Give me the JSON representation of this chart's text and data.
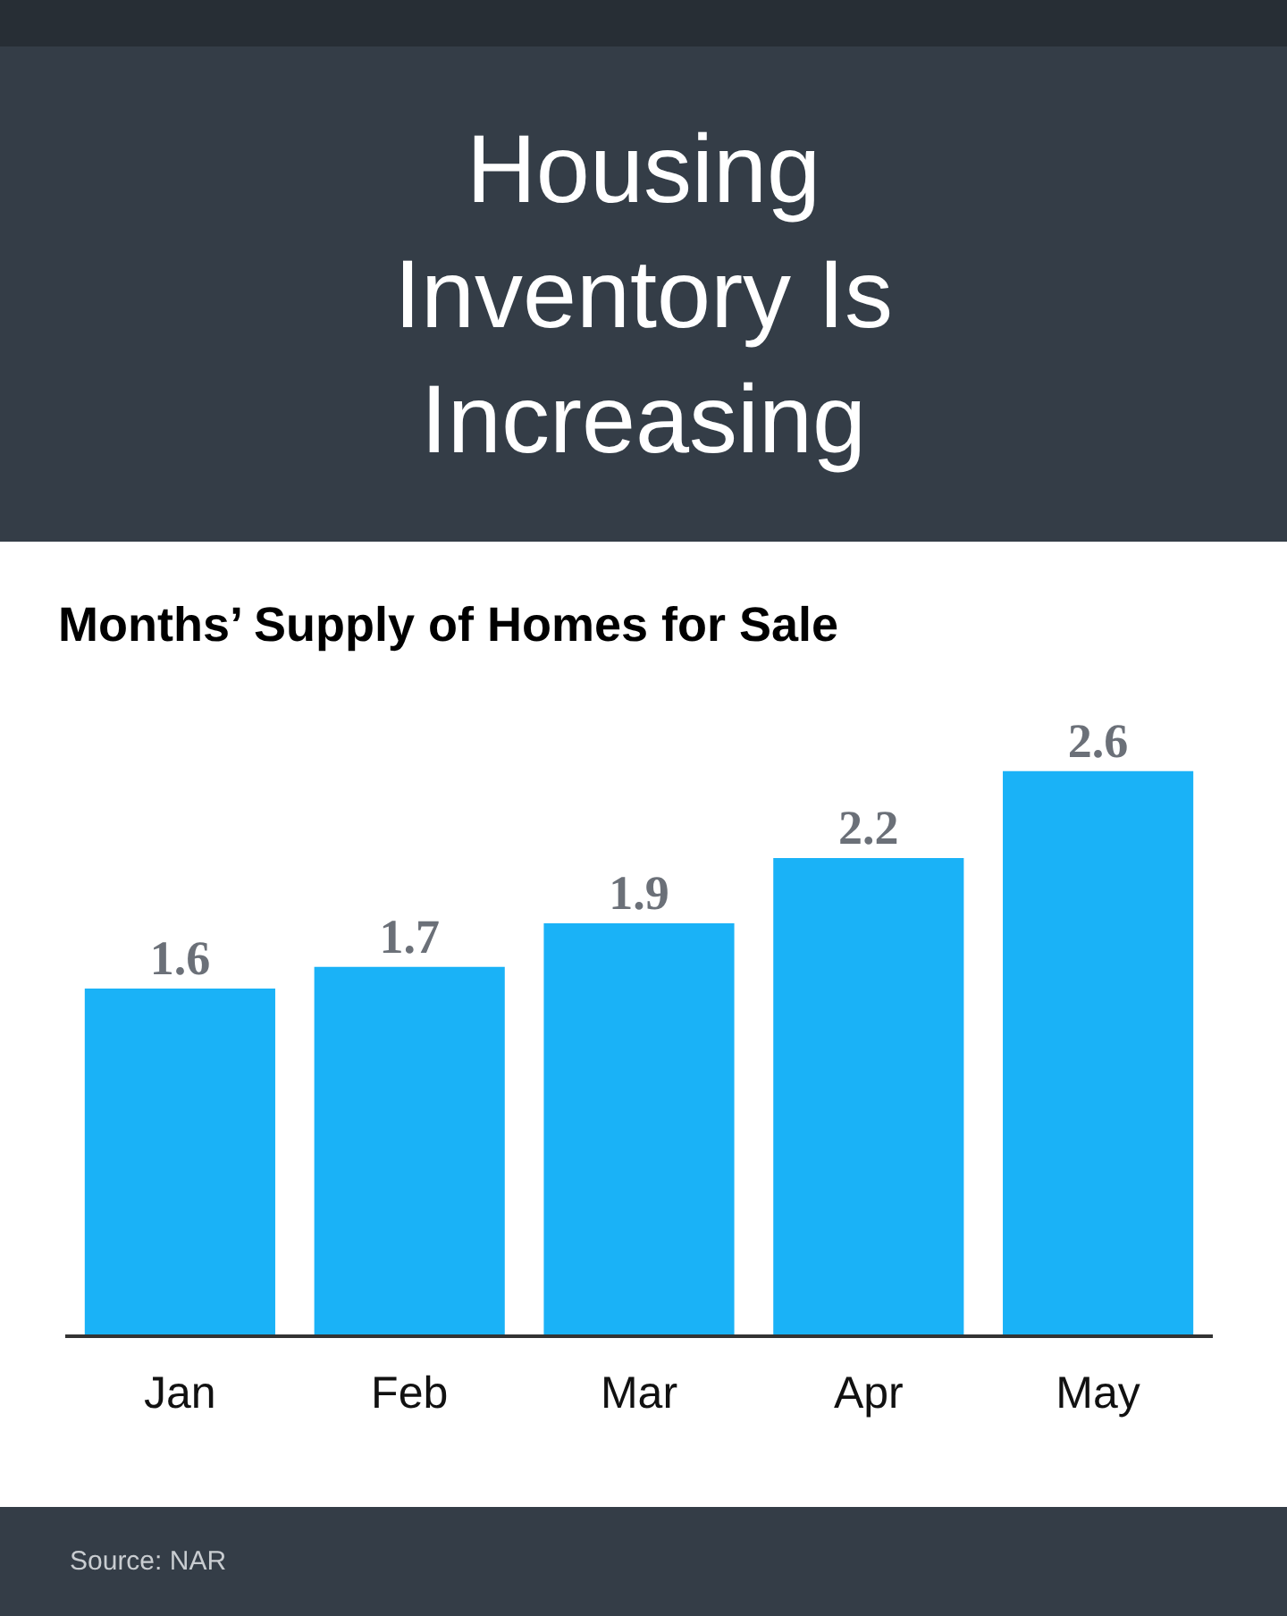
{
  "chart_data": {
    "type": "bar",
    "title": "Housing Inventory Is Increasing",
    "subtitle": "Months’ Supply of Homes for Sale",
    "categories": [
      "Jan",
      "Feb",
      "Mar",
      "Apr",
      "May"
    ],
    "values": [
      1.6,
      1.7,
      1.9,
      2.2,
      2.6
    ],
    "color": "#1ab2f7",
    "data_labels": true,
    "annotations": [
      "Source: NAR"
    ]
  }
}
